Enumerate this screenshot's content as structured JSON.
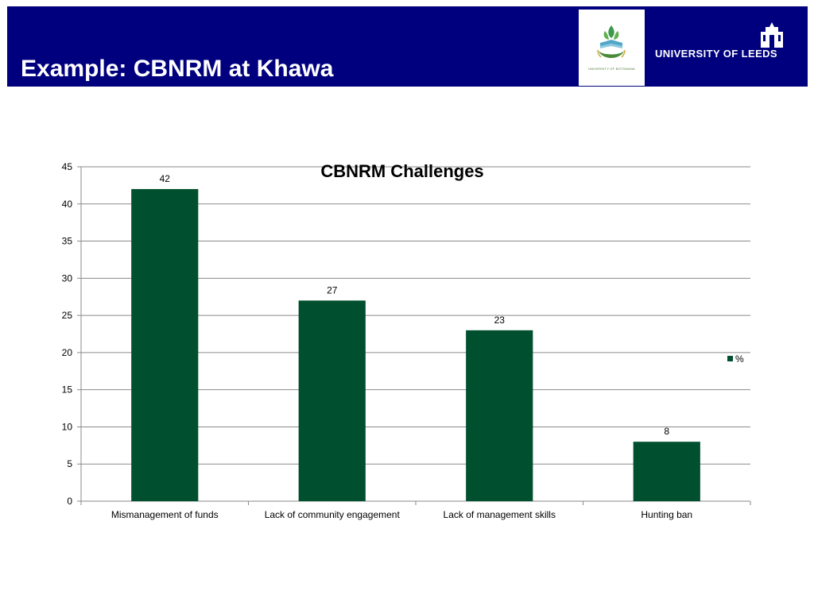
{
  "slide": {
    "title": "Example: CBNRM at Khawa",
    "header_color": "#00007f"
  },
  "logos": {
    "botswana_caption": "UNIVERSITY OF BOTSWANA",
    "leeds_text": "UNIVERSITY OF LEEDS"
  },
  "chart_data": {
    "type": "bar",
    "title": "CBNRM Challenges",
    "categories": [
      "Mismanagement of funds",
      "Lack of community engagement",
      "Lack of management skills",
      "Hunting ban"
    ],
    "series": [
      {
        "name": "%",
        "values": [
          42,
          27,
          23,
          8
        ],
        "color": "#005030"
      }
    ],
    "data_labels": [
      "42",
      "27",
      "23",
      "8"
    ],
    "ylim": [
      0,
      45
    ],
    "yticks": [
      0,
      5,
      10,
      15,
      20,
      25,
      30,
      35,
      40,
      45
    ],
    "grid": true,
    "legend_position": "right"
  }
}
